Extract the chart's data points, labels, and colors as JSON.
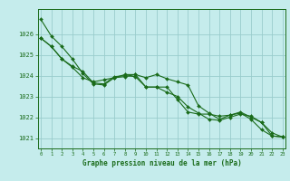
{
  "title": "Graphe pression niveau de la mer (hPa)",
  "background_color": "#c5ecec",
  "grid_color": "#99cccc",
  "line_color": "#1a6b1a",
  "marker_color": "#1a6b1a",
  "xlim": [
    -0.3,
    23.3
  ],
  "ylim": [
    1020.5,
    1027.2
  ],
  "yticks": [
    1021,
    1022,
    1023,
    1024,
    1025,
    1026
  ],
  "xticks": [
    0,
    1,
    2,
    3,
    4,
    5,
    6,
    7,
    8,
    9,
    10,
    11,
    12,
    13,
    14,
    15,
    16,
    17,
    18,
    19,
    20,
    21,
    22,
    23
  ],
  "series": [
    [
      1026.7,
      1025.9,
      1025.4,
      1024.8,
      1024.1,
      1023.6,
      1023.55,
      1023.9,
      1023.95,
      1024.05,
      1023.45,
      1023.45,
      1023.45,
      1022.85,
      1022.25,
      1022.15,
      1022.15,
      1022.05,
      1022.1,
      1022.25,
      1022.0,
      1021.75,
      1021.1,
      1021.05
    ],
    [
      1025.8,
      1025.4,
      1024.8,
      1024.4,
      1023.9,
      1023.7,
      1023.8,
      1023.9,
      1024.05,
      1024.05,
      1023.9,
      1024.05,
      1023.85,
      1023.7,
      1023.55,
      1022.55,
      1022.2,
      1021.9,
      1022.1,
      1022.2,
      1021.9,
      1021.4,
      1021.1,
      1021.05
    ],
    [
      1025.8,
      1025.4,
      1024.8,
      1024.45,
      1024.2,
      1023.65,
      1023.6,
      1023.95,
      1024.0,
      1023.95,
      1023.45,
      1023.45,
      1023.2,
      1023.0,
      1022.5,
      1022.2,
      1021.9,
      1021.85,
      1022.0,
      1022.15,
      1022.05,
      1021.75,
      1021.25,
      1021.05
    ]
  ]
}
